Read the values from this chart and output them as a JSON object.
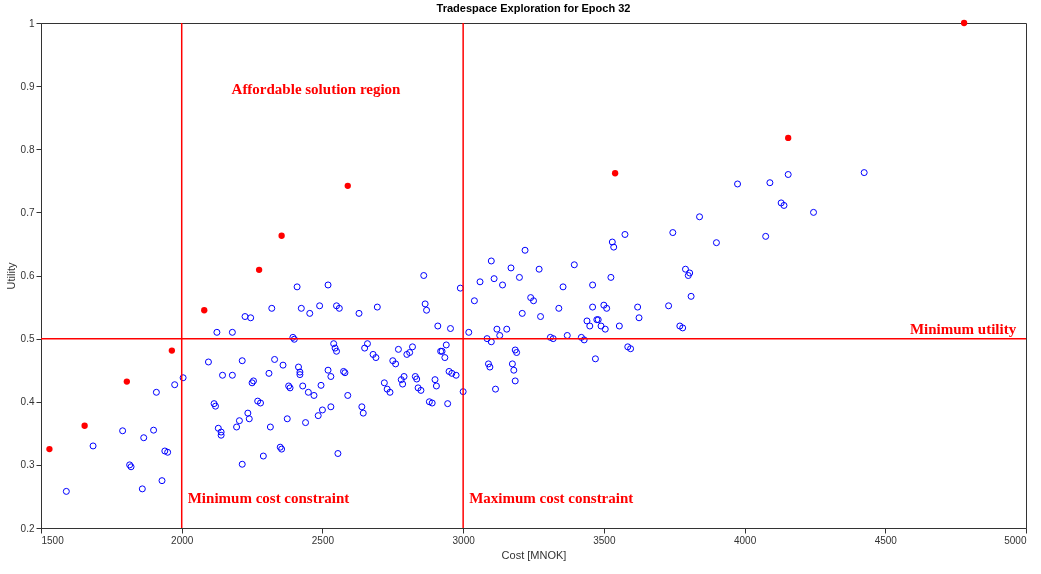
{
  "chart_data": {
    "type": "scatter",
    "title": "Tradespace Exploration for Epoch 32",
    "xlabel": "Cost [MNOK]",
    "ylabel": "Utility",
    "xlim": [
      1500,
      5000
    ],
    "xticks": [
      1500,
      2000,
      2500,
      3000,
      3500,
      4000,
      4500,
      5000
    ],
    "ylim": [
      0.2,
      1
    ],
    "yticks": [
      0.2,
      0.3,
      0.4,
      0.5,
      0.6,
      0.7,
      0.8,
      0.9,
      1
    ],
    "grid": false,
    "marker": "circle",
    "series": [
      {
        "color": "#0000ff",
        "x": [
          1590,
          1685,
          1790,
          1815,
          1820,
          1860,
          1865,
          1900,
          1910,
          1930,
          1940,
          1950,
          1975,
          2005,
          2095,
          2115,
          2120,
          2125,
          2130,
          2140,
          2140,
          2145,
          2180,
          2180,
          2195,
          2205,
          2215,
          2215,
          2225,
          2235,
          2240,
          2245,
          2250,
          2255,
          2270,
          2280,
          2290,
          2310,
          2315,
          2320,
          2330,
          2350,
          2355,
          2360,
          2375,
          2380,
          2385,
          2395,
          2400,
          2410,
          2415,
          2420,
          2420,
          2425,
          2430,
          2440,
          2450,
          2455,
          2470,
          2485,
          2490,
          2495,
          2500,
          2520,
          2520,
          2530,
          2530,
          2540,
          2545,
          2550,
          2550,
          2555,
          2560,
          2575,
          2580,
          2590,
          2630,
          2640,
          2645,
          2650,
          2660,
          2680,
          2690,
          2695,
          2720,
          2730,
          2740,
          2750,
          2760,
          2770,
          2780,
          2785,
          2790,
          2800,
          2810,
          2820,
          2830,
          2835,
          2840,
          2850,
          2860,
          2865,
          2870,
          2880,
          2890,
          2900,
          2905,
          2910,
          2920,
          2925,
          2935,
          2940,
          2945,
          2950,
          2955,
          2960,
          2975,
          2990,
          3000,
          3020,
          3040,
          3060,
          3085,
          3090,
          3095,
          3100,
          3100,
          3110,
          3115,
          3120,
          3130,
          3140,
          3155,
          3170,
          3175,
          3180,
          3185,
          3185,
          3190,
          3200,
          3210,
          3220,
          3240,
          3250,
          3270,
          3275,
          3310,
          3320,
          3340,
          3355,
          3370,
          3395,
          3420,
          3430,
          3440,
          3450,
          3460,
          3460,
          3470,
          3475,
          3480,
          3490,
          3500,
          3505,
          3510,
          3525,
          3530,
          3535,
          3555,
          3575,
          3585,
          3595,
          3620,
          3625,
          3730,
          3745,
          3770,
          3780,
          3790,
          3800,
          3805,
          3810,
          3840,
          3900,
          3975,
          4075,
          4090,
          4130,
          4140,
          4155,
          4245,
          4425
        ],
        "values": [
          0.258,
          0.33,
          0.354,
          0.3,
          0.297,
          0.262,
          0.343,
          0.355,
          0.415,
          0.275,
          0.322,
          0.32,
          0.427,
          0.438,
          0.463,
          0.397,
          0.393,
          0.51,
          0.358,
          0.347,
          0.352,
          0.442,
          0.442,
          0.51,
          0.36,
          0.37,
          0.465,
          0.301,
          0.535,
          0.382,
          0.373,
          0.533,
          0.43,
          0.433,
          0.401,
          0.398,
          0.314,
          0.445,
          0.36,
          0.548,
          0.467,
          0.328,
          0.325,
          0.458,
          0.373,
          0.425,
          0.422,
          0.502,
          0.499,
          0.582,
          0.455,
          0.447,
          0.443,
          0.548,
          0.425,
          0.367,
          0.415,
          0.54,
          0.41,
          0.378,
          0.552,
          0.426,
          0.387,
          0.585,
          0.45,
          0.44,
          0.392,
          0.492,
          0.485,
          0.48,
          0.552,
          0.318,
          0.548,
          0.448,
          0.446,
          0.41,
          0.54,
          0.392,
          0.382,
          0.485,
          0.492,
          0.475,
          0.47,
          0.55,
          0.43,
          0.42,
          0.415,
          0.465,
          0.46,
          0.483,
          0.435,
          0.428,
          0.44,
          0.475,
          0.478,
          0.487,
          0.44,
          0.436,
          0.422,
          0.418,
          0.6,
          0.555,
          0.545,
          0.4,
          0.398,
          0.435,
          0.425,
          0.52,
          0.48,
          0.48,
          0.47,
          0.49,
          0.397,
          0.448,
          0.516,
          0.445,
          0.442,
          0.58,
          0.416,
          0.51,
          0.56,
          0.59,
          0.5,
          0.46,
          0.455,
          0.495,
          0.623,
          0.595,
          0.42,
          0.515,
          0.505,
          0.585,
          0.515,
          0.612,
          0.46,
          0.45,
          0.433,
          0.482,
          0.478,
          0.597,
          0.54,
          0.64,
          0.565,
          0.56,
          0.61,
          0.535,
          0.502,
          0.5,
          0.548,
          0.582,
          0.505,
          0.617,
          0.502,
          0.498,
          0.528,
          0.52,
          0.585,
          0.55,
          0.468,
          0.53,
          0.53,
          0.52,
          0.553,
          0.515,
          0.548,
          0.597,
          0.653,
          0.645,
          0.52,
          0.665,
          0.487,
          0.484,
          0.55,
          0.533,
          0.552,
          0.668,
          0.52,
          0.517,
          0.61,
          0.6,
          0.604,
          0.567,
          0.693,
          0.652,
          0.745,
          0.662,
          0.747,
          0.715,
          0.711,
          0.76,
          0.7,
          0.763
        ]
      },
      {
        "color": "#ff0000",
        "x": [
          1530,
          1655,
          1805,
          1965,
          2080,
          2275,
          2355,
          2590,
          3540,
          4155,
          4780
        ],
        "values": [
          0.325,
          0.362,
          0.432,
          0.481,
          0.545,
          0.609,
          0.663,
          0.742,
          0.762,
          0.818,
          1.0
        ]
      }
    ],
    "ref_lines": [
      {
        "axis": "x",
        "value": 2000,
        "label": "Minimum cost constraint",
        "color": "#ff0000"
      },
      {
        "axis": "x",
        "value": 3000,
        "label": "Maximum cost constraint",
        "color": "#ff0000"
      },
      {
        "axis": "y",
        "value": 0.5,
        "label": "Minimum utility",
        "color": "#ff0000"
      }
    ],
    "annotations": [
      "Affordable solution region"
    ]
  }
}
